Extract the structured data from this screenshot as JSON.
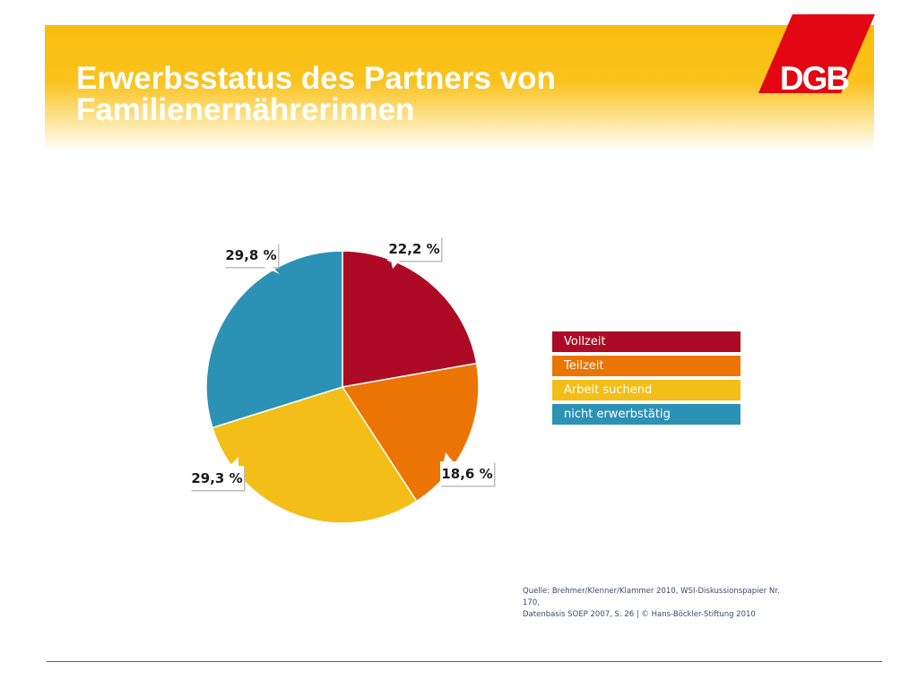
{
  "slide": {
    "title_line1": "Erwerbsstatus des Partners von",
    "title_line2": "Familienernährerinnen",
    "logo_text": "DGB",
    "source_line1": "Quelle: Brehmer/Klenner/Klammer 2010, WSI-Diskussionspapier Nr. 170,",
    "source_line2": "Datenbasis SOEP 2007, S. 26 | © Hans-Böckler-Stiftung 2010"
  },
  "colors": {
    "brand_red": "#e30613",
    "header_yellow": "#f8bd0d",
    "footer_line": "#d12a2a"
  },
  "chart_data": {
    "type": "pie",
    "categories": [
      "Vollzeit",
      "Teilzeit",
      "Arbeit suchend",
      "nicht erwerbstätig"
    ],
    "values": [
      22.2,
      18.6,
      29.3,
      29.8
    ],
    "value_labels": [
      "22,2 %",
      "18,6 %",
      "29,3 %",
      "29,8 %"
    ],
    "colors": [
      "#ad0b25",
      "#ec7403",
      "#f2be17",
      "#2c92b5"
    ],
    "start_angle_deg": 0,
    "direction": "clockwise",
    "legend_position": "right"
  }
}
